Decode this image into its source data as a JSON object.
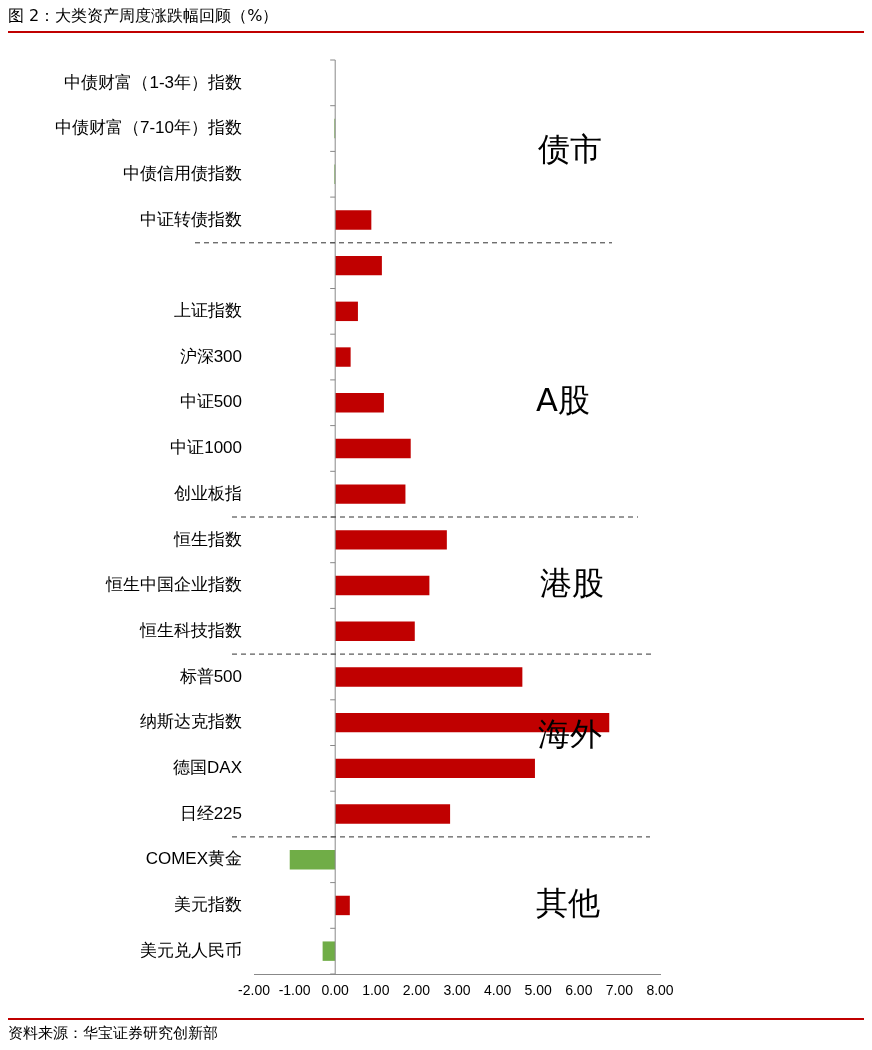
{
  "chart_data": {
    "type": "bar",
    "orientation": "horizontal",
    "title": "图 2：大类资产周度涨跌幅回顾（%）",
    "categories": [
      "中债财富（1-3年）指数",
      "中债财富（7-10年）指数",
      "中债信用债指数",
      "中证转债指数",
      null,
      "上证指数",
      "沪深300",
      "中证500",
      "中证1000",
      "创业板指",
      "恒生指数",
      "恒生中国企业指数",
      "恒生科技指数",
      "标普500",
      "纳斯达克指数",
      "德国DAX",
      "日经225",
      "COMEX黄金",
      "美元指数",
      "美元兑人民币"
    ],
    "values": [
      0,
      -0.02,
      -0.02,
      0.89,
      1.15,
      0.56,
      0.38,
      1.2,
      1.86,
      1.73,
      2.75,
      2.32,
      1.96,
      4.61,
      6.75,
      4.92,
      2.83,
      -1.12,
      0.36,
      -0.31
    ],
    "colors": [
      "#c00000",
      "#70ad47",
      "#70ad47",
      "#c00000",
      "#c00000",
      "#c00000",
      "#c00000",
      "#c00000",
      "#c00000",
      "#c00000",
      "#c00000",
      "#c00000",
      "#c00000",
      "#c00000",
      "#c00000",
      "#c00000",
      "#c00000",
      "#70ad47",
      "#c00000",
      "#70ad47"
    ],
    "xlim": [
      -2,
      8
    ],
    "xticks": [
      {
        "value": -2,
        "label": "-2.00"
      },
      {
        "value": -1,
        "label": "-1.00"
      },
      {
        "value": 0,
        "label": "0.00"
      },
      {
        "value": 1,
        "label": "1.00"
      },
      {
        "value": 2,
        "label": "2.00"
      },
      {
        "value": 3,
        "label": "3.00"
      },
      {
        "value": 4,
        "label": "4.00"
      },
      {
        "value": 5,
        "label": "5.00"
      },
      {
        "value": 6,
        "label": "6.00"
      },
      {
        "value": 7,
        "label": "7.00"
      },
      {
        "value": 8,
        "label": "8.00"
      }
    ],
    "grid": false,
    "legend": false,
    "annotations": [
      "债市",
      "A股",
      "港股",
      "海外",
      "其他",
      "资料来源：华宝证券研究创新部"
    ]
  }
}
